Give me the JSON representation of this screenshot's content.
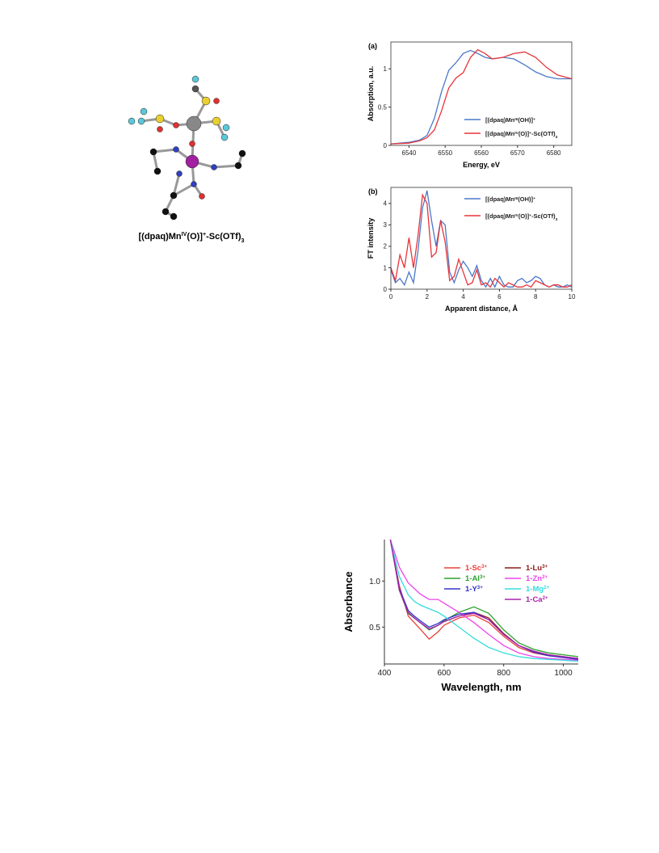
{
  "molecule": {
    "caption": [
      {
        "t": "[(dpaq)Mn"
      },
      {
        "t": "IV",
        "s": "sup"
      },
      {
        "t": "(O)]"
      },
      {
        "t": "+",
        "s": "sup"
      },
      {
        "t": "-Sc(OTf)"
      },
      {
        "t": "3",
        "s": "sub"
      }
    ]
  },
  "chart_data": [
    {
      "type": "line",
      "panel": "(a)",
      "y_label": "Absorption, a.u.",
      "x_label": "Energy, eV",
      "box": true,
      "xlim": [
        6535,
        6585
      ],
      "xticks": [
        6540,
        6550,
        6560,
        6570,
        6580
      ],
      "ylim": [
        0,
        1.35
      ],
      "yticks": [
        0,
        0.5,
        1
      ],
      "x": [
        6535,
        6540,
        6543,
        6545,
        6547,
        6549,
        6551,
        6553,
        6555,
        6557,
        6559,
        6561,
        6563,
        6566,
        6569,
        6572,
        6575,
        6578,
        6581,
        6585
      ],
      "series": [
        {
          "name": [
            {
              "t": "[(dpaq)Mn"
            },
            {
              "t": "III",
              "s": "sup"
            },
            {
              "t": "(OH)]"
            },
            {
              "t": "+",
              "s": "sup"
            }
          ],
          "color": "#4a78c8",
          "values": [
            0.02,
            0.04,
            0.07,
            0.13,
            0.35,
            0.7,
            0.98,
            1.08,
            1.2,
            1.24,
            1.2,
            1.15,
            1.13,
            1.15,
            1.13,
            1.05,
            0.96,
            0.9,
            0.87,
            0.87
          ]
        },
        {
          "name": [
            {
              "t": "[(dpaq)Mn"
            },
            {
              "t": "IV",
              "s": "sup"
            },
            {
              "t": "(O)]"
            },
            {
              "t": "+",
              "s": "sup"
            },
            {
              "t": "-Sc(OTf)"
            },
            {
              "t": "3",
              "s": "sub"
            }
          ],
          "color": "#e8343a",
          "values": [
            0.02,
            0.03,
            0.06,
            0.1,
            0.2,
            0.45,
            0.75,
            0.88,
            0.95,
            1.15,
            1.25,
            1.2,
            1.13,
            1.15,
            1.2,
            1.22,
            1.15,
            1.02,
            0.92,
            0.87
          ]
        }
      ]
    },
    {
      "type": "line",
      "panel": "(b)",
      "y_label": "FT intensity",
      "x_label": "Apparent distance, Å",
      "box": true,
      "xlim": [
        0,
        10
      ],
      "xticks": [
        0,
        2,
        4,
        6,
        8,
        10
      ],
      "ylim": [
        0,
        4.75
      ],
      "yticks": [
        0,
        1,
        2,
        3,
        4
      ],
      "x": [
        0,
        0.25,
        0.5,
        0.75,
        1,
        1.25,
        1.5,
        1.75,
        2,
        2.25,
        2.5,
        2.75,
        3,
        3.25,
        3.5,
        3.75,
        4,
        4.25,
        4.5,
        4.75,
        5,
        5.25,
        5.5,
        5.75,
        6,
        6.25,
        6.5,
        6.75,
        7,
        7.25,
        7.5,
        7.75,
        8,
        8.25,
        8.5,
        8.75,
        9,
        9.25,
        9.5,
        9.75,
        10
      ],
      "series": [
        {
          "name": [
            {
              "t": "[(dpaq)Mn"
            },
            {
              "t": "III",
              "s": "sup"
            },
            {
              "t": "(OH)]"
            },
            {
              "t": "+",
              "s": "sup"
            }
          ],
          "color": "#4a78c8",
          "values": [
            0.9,
            0.3,
            0.5,
            0.2,
            0.8,
            0.3,
            1.8,
            3.8,
            4.6,
            3.2,
            2.0,
            3.2,
            3.0,
            0.8,
            0.3,
            0.9,
            1.3,
            1.0,
            0.6,
            1.1,
            0.4,
            0.1,
            0.5,
            0.1,
            0.6,
            0.2,
            0.1,
            0.1,
            0.4,
            0.5,
            0.3,
            0.4,
            0.6,
            0.5,
            0.2,
            0.1,
            0.2,
            0.1,
            0.1,
            0.2,
            0.1
          ]
        },
        {
          "name": [
            {
              "t": "[(dpaq)Mn"
            },
            {
              "t": "IV",
              "s": "sup"
            },
            {
              "t": "(O)]"
            },
            {
              "t": "+",
              "s": "sup"
            },
            {
              "t": "-Sc(OTf)"
            },
            {
              "t": "3",
              "s": "sub"
            }
          ],
          "color": "#e8343a",
          "values": [
            1.0,
            0.4,
            1.6,
            1.0,
            2.4,
            1.0,
            2.5,
            4.4,
            4.0,
            1.5,
            1.7,
            3.2,
            2.2,
            0.4,
            0.6,
            1.4,
            0.8,
            0.2,
            0.3,
            0.9,
            0.2,
            0.3,
            0.1,
            0.5,
            0.3,
            0.1,
            0.3,
            0.2,
            0.1,
            0.1,
            0.2,
            0.1,
            0.4,
            0.3,
            0.2,
            0.1,
            0.2,
            0.2,
            0.1,
            0.1,
            0.2
          ]
        }
      ]
    },
    {
      "type": "line",
      "y_label": "Absorbance",
      "x_label": "Wavelength, nm",
      "box": false,
      "xlim": [
        400,
        1050
      ],
      "xticks": [
        400,
        600,
        800,
        1000
      ],
      "ylim": [
        0.1,
        1.45
      ],
      "yticks": [
        0.5,
        {
          "value": 1,
          "label": "1.0"
        }
      ],
      "x": [
        420,
        450,
        480,
        500,
        520,
        550,
        580,
        600,
        650,
        700,
        750,
        800,
        850,
        900,
        950,
        1000,
        1050
      ],
      "series": [
        {
          "name": [
            {
              "t": "1-Sc"
            },
            {
              "t": "3+",
              "s": "sup"
            }
          ],
          "color": "#e8403a",
          "values": [
            1.45,
            0.95,
            0.62,
            0.55,
            0.48,
            0.37,
            0.45,
            0.52,
            0.6,
            0.63,
            0.55,
            0.4,
            0.28,
            0.22,
            0.19,
            0.17,
            0.15
          ]
        },
        {
          "name": [
            {
              "t": "1-Lu"
            },
            {
              "t": "3+",
              "s": "sup"
            }
          ],
          "color": "#8b1a1a",
          "values": [
            1.45,
            0.9,
            0.65,
            0.6,
            0.55,
            0.48,
            0.52,
            0.56,
            0.62,
            0.66,
            0.6,
            0.43,
            0.3,
            0.24,
            0.2,
            0.18,
            0.16
          ]
        },
        {
          "name": [
            {
              "t": "1-Al"
            },
            {
              "t": "3+",
              "s": "sup"
            }
          ],
          "color": "#2ca02c",
          "values": [
            1.45,
            0.9,
            0.65,
            0.6,
            0.55,
            0.47,
            0.52,
            0.57,
            0.66,
            0.72,
            0.65,
            0.47,
            0.33,
            0.26,
            0.22,
            0.2,
            0.18
          ]
        },
        {
          "name": [
            {
              "t": "1-Zn"
            },
            {
              "t": "2+",
              "s": "sup"
            }
          ],
          "color": "#ee44ee",
          "values": [
            1.45,
            1.15,
            0.98,
            0.92,
            0.86,
            0.8,
            0.8,
            0.76,
            0.66,
            0.55,
            0.42,
            0.3,
            0.22,
            0.18,
            0.16,
            0.15,
            0.14
          ]
        },
        {
          "name": [
            {
              "t": "1-Y"
            },
            {
              "t": "3+",
              "s": "sup"
            }
          ],
          "color": "#3333cc",
          "values": [
            1.45,
            0.92,
            0.68,
            0.62,
            0.57,
            0.5,
            0.54,
            0.58,
            0.64,
            0.66,
            0.58,
            0.42,
            0.3,
            0.23,
            0.19,
            0.17,
            0.15
          ]
        },
        {
          "name": [
            {
              "t": "1-Mg"
            },
            {
              "t": "2+",
              "s": "sup"
            }
          ],
          "color": "#33dddd",
          "values": [
            1.45,
            1.05,
            0.85,
            0.78,
            0.74,
            0.7,
            0.66,
            0.62,
            0.5,
            0.38,
            0.28,
            0.22,
            0.18,
            0.16,
            0.15,
            0.14,
            0.13
          ]
        },
        {
          "name": [
            {
              "t": "1-Ca"
            },
            {
              "t": "2+",
              "s": "sup"
            }
          ],
          "color": "#aa22aa",
          "values": [
            1.45,
            0.9,
            0.66,
            0.6,
            0.55,
            0.48,
            0.52,
            0.56,
            0.62,
            0.65,
            0.58,
            0.42,
            0.3,
            0.24,
            0.2,
            0.18,
            0.16
          ]
        }
      ]
    }
  ]
}
